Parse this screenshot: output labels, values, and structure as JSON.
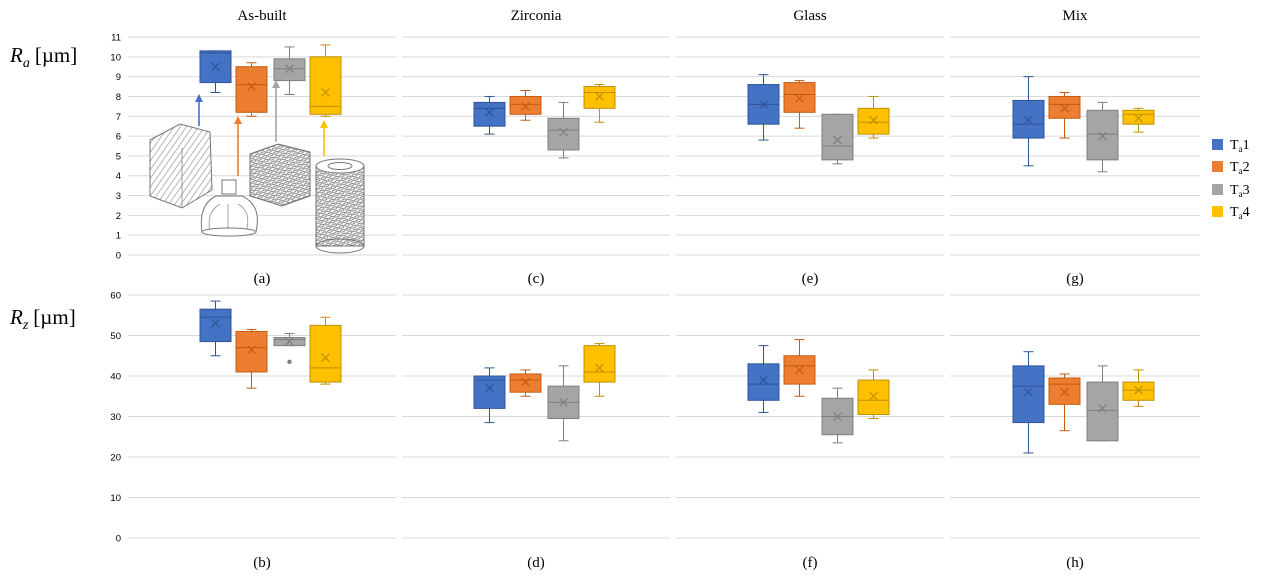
{
  "figure": {
    "columns": [
      "As-built",
      "Zirconia",
      "Glass",
      "Mix"
    ],
    "rows": [
      {
        "symbol": "R",
        "subscript": "a",
        "unit": "[µm]"
      },
      {
        "symbol": "R",
        "subscript": "z",
        "unit": "[µm]"
      }
    ],
    "panel_labels": [
      [
        "(a)",
        "(c)",
        "(e)",
        "(g)"
      ],
      [
        "(b)",
        "(d)",
        "(f)",
        "(h)"
      ]
    ],
    "legend": [
      {
        "base": "T",
        "sub": "a",
        "suffix": "1",
        "color": "#4472C4"
      },
      {
        "base": "T",
        "sub": "a",
        "suffix": "2",
        "color": "#ED7D31"
      },
      {
        "base": "T",
        "sub": "a",
        "suffix": "3",
        "color": "#A5A5A5"
      },
      {
        "base": "T",
        "sub": "a",
        "suffix": "4",
        "color": "#FFC000"
      }
    ]
  },
  "chart_data": [
    {
      "type": "box",
      "row": 0,
      "col": 0,
      "title": "As-built",
      "ylim": [
        0,
        11
      ],
      "yticks": [
        "0",
        "1",
        "2",
        "3",
        "4",
        "5",
        "6",
        "7",
        "8",
        "9",
        "10",
        "11"
      ],
      "grid": true,
      "series": [
        {
          "min": 8.2,
          "q1": 8.7,
          "median": 10.2,
          "q3": 10.3,
          "max": 10.3,
          "mean": 9.5
        },
        {
          "min": 7.0,
          "q1": 7.2,
          "median": 8.6,
          "q3": 9.5,
          "max": 9.7,
          "mean": 8.5
        },
        {
          "min": 8.1,
          "q1": 8.8,
          "median": 9.4,
          "q3": 9.9,
          "max": 10.5,
          "mean": 9.4
        },
        {
          "min": 7.0,
          "q1": 7.1,
          "median": 7.5,
          "q3": 10.0,
          "max": 10.6,
          "mean": 8.2
        }
      ]
    },
    {
      "type": "box",
      "row": 0,
      "col": 1,
      "title": "Zirconia",
      "ylim": [
        0,
        11
      ],
      "grid": true,
      "series": [
        {
          "min": 6.1,
          "q1": 6.5,
          "median": 7.4,
          "q3": 7.7,
          "max": 8.0,
          "mean": 7.2
        },
        {
          "min": 6.8,
          "q1": 7.1,
          "median": 7.6,
          "q3": 8.0,
          "max": 8.3,
          "mean": 7.5
        },
        {
          "min": 4.9,
          "q1": 5.3,
          "median": 6.3,
          "q3": 6.9,
          "max": 7.7,
          "mean": 6.2
        },
        {
          "min": 6.7,
          "q1": 7.4,
          "median": 8.2,
          "q3": 8.5,
          "max": 8.6,
          "mean": 8.0
        }
      ]
    },
    {
      "type": "box",
      "row": 0,
      "col": 2,
      "title": "Glass",
      "ylim": [
        0,
        11
      ],
      "grid": true,
      "series": [
        {
          "min": 5.8,
          "q1": 6.6,
          "median": 7.6,
          "q3": 8.6,
          "max": 9.1,
          "mean": 7.6
        },
        {
          "min": 6.4,
          "q1": 7.2,
          "median": 8.1,
          "q3": 8.7,
          "max": 8.8,
          "mean": 7.9
        },
        {
          "min": 4.6,
          "q1": 4.8,
          "median": 5.5,
          "q3": 7.1,
          "max": 7.1,
          "mean": 5.8
        },
        {
          "min": 5.9,
          "q1": 6.1,
          "median": 6.7,
          "q3": 7.4,
          "max": 8.0,
          "mean": 6.8
        }
      ]
    },
    {
      "type": "box",
      "row": 0,
      "col": 3,
      "title": "Mix",
      "ylim": [
        0,
        11
      ],
      "grid": true,
      "series": [
        {
          "min": 4.5,
          "q1": 5.9,
          "median": 6.6,
          "q3": 7.8,
          "max": 9.0,
          "mean": 6.8
        },
        {
          "min": 5.9,
          "q1": 6.9,
          "median": 7.6,
          "q3": 8.0,
          "max": 8.2,
          "mean": 7.4
        },
        {
          "min": 4.2,
          "q1": 4.8,
          "median": 6.1,
          "q3": 7.3,
          "max": 7.7,
          "mean": 6.0
        },
        {
          "min": 6.2,
          "q1": 6.6,
          "median": 7.1,
          "q3": 7.3,
          "max": 7.4,
          "mean": 6.9
        }
      ]
    },
    {
      "type": "box",
      "row": 1,
      "col": 0,
      "ylim": [
        0,
        60
      ],
      "yticks": [
        "0",
        "10",
        "20",
        "30",
        "40",
        "50",
        "60"
      ],
      "grid": true,
      "series": [
        {
          "min": 45.0,
          "q1": 48.5,
          "median": 54.5,
          "q3": 56.5,
          "max": 58.5,
          "mean": 53.0
        },
        {
          "min": 37.0,
          "q1": 41.0,
          "median": 47.0,
          "q3": 51.0,
          "max": 51.5,
          "mean": 46.5
        },
        {
          "min": 47.5,
          "q1": 47.5,
          "median": 49.0,
          "q3": 49.5,
          "max": 50.5,
          "mean": 48.5,
          "outliers": [
            43.5
          ]
        },
        {
          "min": 38.0,
          "q1": 38.5,
          "median": 42.0,
          "q3": 52.5,
          "max": 54.5,
          "mean": 44.5
        }
      ]
    },
    {
      "type": "box",
      "row": 1,
      "col": 1,
      "ylim": [
        0,
        60
      ],
      "grid": true,
      "series": [
        {
          "min": 28.5,
          "q1": 32.0,
          "median": 39.0,
          "q3": 40.0,
          "max": 42.0,
          "mean": 37.0
        },
        {
          "min": 35.0,
          "q1": 36.0,
          "median": 39.0,
          "q3": 40.5,
          "max": 41.5,
          "mean": 38.5
        },
        {
          "min": 24.0,
          "q1": 29.5,
          "median": 33.5,
          "q3": 37.5,
          "max": 42.5,
          "mean": 33.5
        },
        {
          "min": 35.0,
          "q1": 38.5,
          "median": 41.0,
          "q3": 47.5,
          "max": 48.0,
          "mean": 42.0
        }
      ]
    },
    {
      "type": "box",
      "row": 1,
      "col": 2,
      "ylim": [
        0,
        60
      ],
      "grid": true,
      "series": [
        {
          "min": 31.0,
          "q1": 34.0,
          "median": 38.0,
          "q3": 43.0,
          "max": 47.5,
          "mean": 39.0
        },
        {
          "min": 35.0,
          "q1": 38.0,
          "median": 42.5,
          "q3": 45.0,
          "max": 49.0,
          "mean": 41.5
        },
        {
          "min": 23.5,
          "q1": 25.5,
          "median": 30.0,
          "q3": 34.5,
          "max": 37.0,
          "mean": 30.0
        },
        {
          "min": 29.5,
          "q1": 30.5,
          "median": 34.0,
          "q3": 39.0,
          "max": 41.5,
          "mean": 35.0
        }
      ]
    },
    {
      "type": "box",
      "row": 1,
      "col": 3,
      "ylim": [
        0,
        60
      ],
      "grid": true,
      "series": [
        {
          "min": 21.0,
          "q1": 28.5,
          "median": 37.5,
          "q3": 42.5,
          "max": 46.0,
          "mean": 36.0
        },
        {
          "min": 26.5,
          "q1": 33.0,
          "median": 38.0,
          "q3": 39.5,
          "max": 40.5,
          "mean": 36.0
        },
        {
          "min": 24.0,
          "q1": 24.0,
          "median": 31.5,
          "q3": 38.5,
          "max": 42.5,
          "mean": 32.0
        },
        {
          "min": 32.5,
          "q1": 34.0,
          "median": 36.5,
          "q3": 38.5,
          "max": 41.5,
          "mean": 36.5
        }
      ]
    }
  ]
}
